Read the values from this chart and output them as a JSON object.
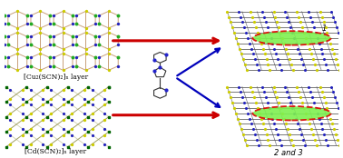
{
  "bg_color": "#ffffff",
  "red_arrow_color": "#cc0000",
  "blue_arrow_color": "#0000bb",
  "green_ellipse_color": "#7ef050",
  "red_dashed_color": "#dd0000",
  "label_top_left": "[Cu₂(SCN)₂]ₙ layer",
  "label_bottom_left": "[Cd(SCN)₂]ₙ layer",
  "label_top_right": "1",
  "label_bottom_right": "2 and 3",
  "figsize": [
    3.78,
    1.74
  ],
  "dpi": 100,
  "cu_node_color": "#22aa22",
  "cu_link_color": "#c8a07a",
  "s_color": "#cccc00",
  "n_color": "#2222bb",
  "cd_node_color": "#006400",
  "cd_link_color": "#a0a060"
}
